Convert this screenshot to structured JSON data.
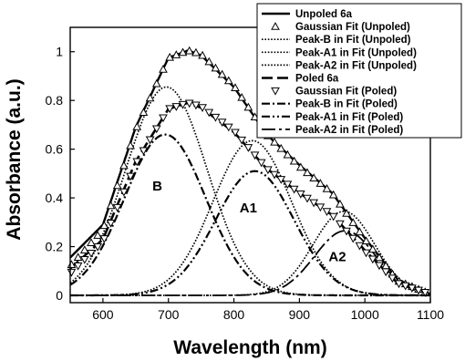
{
  "chart_data": {
    "type": "line",
    "xlabel": "Wavelength (nm)",
    "ylabel": "Absorbance (a.u.)",
    "xlim": [
      550,
      1100
    ],
    "ylim": [
      -0.03,
      1.1
    ],
    "xticks": [
      600,
      700,
      800,
      900,
      1000,
      1100
    ],
    "yticks": [
      0,
      0.2,
      0.4,
      0.6,
      0.8,
      1
    ],
    "xtick_labels": [
      "600",
      "700",
      "800",
      "900",
      "1000",
      "1100"
    ],
    "ytick_labels": [
      "0",
      "0.2",
      "0.4",
      "0.6",
      "0.8",
      "1"
    ],
    "grid": false,
    "legend_position": "top-right",
    "annotations": [
      {
        "text": "B",
        "x": 683,
        "y": 0.43
      },
      {
        "text": "A1",
        "x": 822,
        "y": 0.34
      },
      {
        "text": "A2",
        "x": 958,
        "y": 0.14
      }
    ],
    "peaks": {
      "unpoled": {
        "B": {
          "center": 697,
          "amplitude": 0.855,
          "width": 62
        },
        "A1": {
          "center": 828,
          "amplitude": 0.635,
          "width": 60
        },
        "A2": {
          "center": 968,
          "amplitude": 0.345,
          "width": 47
        }
      },
      "poled": {
        "B": {
          "center": 695,
          "amplitude": 0.66,
          "width": 62
        },
        "A1": {
          "center": 832,
          "amplitude": 0.51,
          "width": 60
        },
        "A2": {
          "center": 970,
          "amplitude": 0.265,
          "width": 47
        }
      }
    },
    "series": [
      {
        "name": "Unpoled 6a",
        "style": "solid",
        "x": [
          550,
          600,
          650,
          700,
          730,
          750,
          800,
          850,
          900,
          950,
          1000,
          1050,
          1100
        ],
        "y": [
          0.155,
          0.29,
          0.69,
          0.975,
          1.005,
          0.985,
          0.855,
          0.66,
          0.535,
          0.42,
          0.235,
          0.065,
          0.005
        ]
      },
      {
        "name": "Gaussian Fit (Unpoled)",
        "style": "triangle-up",
        "x": [
          550,
          600,
          650,
          700,
          730,
          750,
          800,
          850,
          900,
          950,
          1000,
          1050,
          1100
        ],
        "y": [
          0.12,
          0.27,
          0.68,
          0.975,
          1.005,
          0.99,
          0.86,
          0.66,
          0.53,
          0.42,
          0.23,
          0.06,
          0.005
        ]
      },
      {
        "name": "Peak-B in Fit (Unpoled)",
        "style": "dotted",
        "peak": "unpoled.B"
      },
      {
        "name": "Peak-A1 in Fit (Unpoled)",
        "style": "dotted",
        "peak": "unpoled.A1"
      },
      {
        "name": "Peak-A2 in Fit (Unpoled)",
        "style": "dotted",
        "peak": "unpoled.A2"
      },
      {
        "name": "Poled 6a",
        "style": "dashed",
        "x": [
          550,
          600,
          650,
          700,
          730,
          750,
          800,
          850,
          900,
          950,
          1000,
          1050,
          1100
        ],
        "y": [
          0.11,
          0.23,
          0.55,
          0.765,
          0.79,
          0.77,
          0.67,
          0.52,
          0.42,
          0.33,
          0.185,
          0.05,
          0.005
        ]
      },
      {
        "name": "Gaussian Fit (Poled)",
        "style": "triangle-down",
        "x": [
          550,
          600,
          650,
          700,
          730,
          750,
          800,
          850,
          900,
          950,
          1000,
          1050,
          1100
        ],
        "y": [
          0.09,
          0.22,
          0.54,
          0.765,
          0.79,
          0.775,
          0.675,
          0.52,
          0.42,
          0.33,
          0.18,
          0.05,
          0.005
        ]
      },
      {
        "name": "Peak-B in Fit (Poled)",
        "style": "dash-dot",
        "peak": "poled.B"
      },
      {
        "name": "Peak-A1 in Fit (Poled)",
        "style": "dash-dot-dot",
        "peak": "poled.A1"
      },
      {
        "name": "Peak-A2 in Fit (Poled)",
        "style": "long-dash-dot",
        "peak": "poled.A2"
      }
    ]
  }
}
